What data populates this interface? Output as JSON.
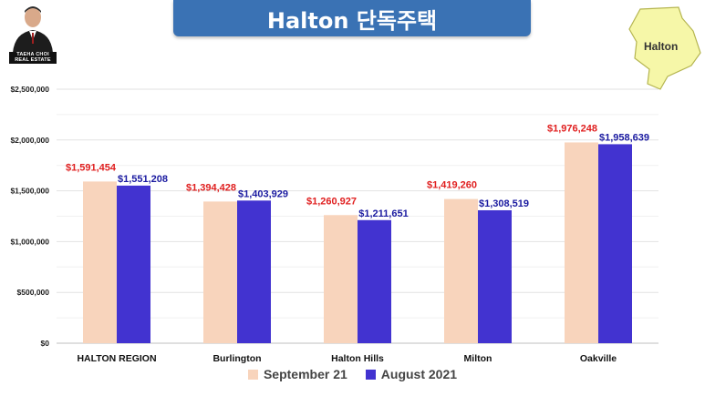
{
  "title": "Halton 단독주택",
  "profile": {
    "caption_line1": "TAEHA CHOI",
    "caption_line2": "REAL ESTATE"
  },
  "map": {
    "label": "Halton",
    "fill": "#f6f7a8",
    "stroke": "#b5b550"
  },
  "colors": {
    "banner": "#3a72b4",
    "series1": "#f8d4bc",
    "series2": "#4233d0",
    "label1": "#e02020",
    "label2": "#1a1aa0"
  },
  "chart_data": {
    "type": "bar",
    "categories": [
      "HALTON REGION",
      "Burlington",
      "Halton Hills",
      "Milton",
      "Oakville"
    ],
    "series": [
      {
        "name": "September 21",
        "values": [
          1591454,
          1394428,
          1260927,
          1419260,
          1976248
        ],
        "labels": [
          "$1,591,454",
          "$1,394,428",
          "$1,260,927",
          "$1,419,260",
          "$1,976,248"
        ]
      },
      {
        "name": "August 2021",
        "values": [
          1551208,
          1403929,
          1211651,
          1308519,
          1958639
        ],
        "labels": [
          "$1,551,208",
          "$1,403,929",
          "$1,211,651",
          "$1,308,519",
          "$1,958,639"
        ]
      }
    ],
    "ylim": [
      0,
      2500000
    ],
    "yticks": [
      0,
      500000,
      1000000,
      1500000,
      2000000,
      2500000
    ],
    "ytick_labels": [
      "$0",
      "$500,000",
      "$1,000,000",
      "$1,500,000",
      "$2,000,000",
      "$2,500,000"
    ],
    "grid": true,
    "legend": "bottom"
  }
}
